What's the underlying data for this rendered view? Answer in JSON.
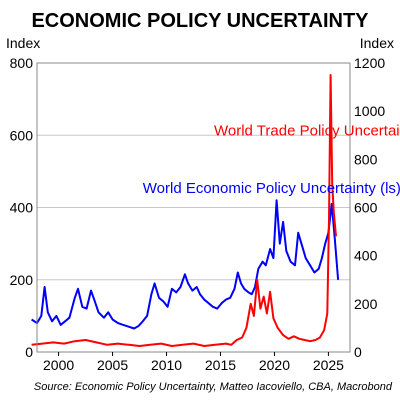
{
  "chart_data": {
    "type": "line",
    "title": "ECONOMIC POLICY UNCERTAINTY",
    "ylabel_left": "Index",
    "ylabel_right": "Index",
    "xlim": [
      1998,
      2027
    ],
    "ylim_left": [
      0,
      800
    ],
    "ylim_right": [
      0,
      1200
    ],
    "x_ticks": [
      2000,
      2005,
      2010,
      2015,
      2020,
      2025
    ],
    "y_ticks_left": [
      0,
      200,
      400,
      600,
      800
    ],
    "y_ticks_right": [
      0,
      200,
      400,
      600,
      800,
      1000,
      1200
    ],
    "grid": true,
    "source": "Source: Economic Policy Uncertainty, Matteo Iacoviello, CBA, Macrobond",
    "series": [
      {
        "name": "World Economic Policy Uncertainty (ls)",
        "axis": "left",
        "color": "#0000ff",
        "points": [
          [
            1997.5,
            90
          ],
          [
            1998.0,
            80
          ],
          [
            1998.4,
            100
          ],
          [
            1998.7,
            180
          ],
          [
            1999.0,
            110
          ],
          [
            1999.4,
            85
          ],
          [
            1999.8,
            100
          ],
          [
            2000.2,
            75
          ],
          [
            2000.6,
            85
          ],
          [
            2001.0,
            95
          ],
          [
            2001.5,
            150
          ],
          [
            2001.8,
            175
          ],
          [
            2002.2,
            125
          ],
          [
            2002.6,
            120
          ],
          [
            2003.0,
            170
          ],
          [
            2003.3,
            145
          ],
          [
            2003.7,
            110
          ],
          [
            2004.2,
            95
          ],
          [
            2004.6,
            110
          ],
          [
            2005.0,
            90
          ],
          [
            2005.5,
            80
          ],
          [
            2006.0,
            75
          ],
          [
            2006.5,
            70
          ],
          [
            2007.0,
            65
          ],
          [
            2007.4,
            72
          ],
          [
            2007.8,
            85
          ],
          [
            2008.2,
            100
          ],
          [
            2008.6,
            160
          ],
          [
            2008.9,
            190
          ],
          [
            2009.3,
            150
          ],
          [
            2009.7,
            140
          ],
          [
            2010.1,
            125
          ],
          [
            2010.5,
            175
          ],
          [
            2010.9,
            165
          ],
          [
            2011.3,
            180
          ],
          [
            2011.7,
            215
          ],
          [
            2012.0,
            190
          ],
          [
            2012.4,
            170
          ],
          [
            2012.8,
            180
          ],
          [
            2013.1,
            160
          ],
          [
            2013.5,
            145
          ],
          [
            2013.9,
            135
          ],
          [
            2014.3,
            125
          ],
          [
            2014.7,
            120
          ],
          [
            2015.1,
            135
          ],
          [
            2015.5,
            145
          ],
          [
            2015.9,
            150
          ],
          [
            2016.3,
            175
          ],
          [
            2016.6,
            220
          ],
          [
            2016.9,
            190
          ],
          [
            2017.2,
            175
          ],
          [
            2017.6,
            165
          ],
          [
            2017.9,
            160
          ],
          [
            2018.2,
            180
          ],
          [
            2018.5,
            230
          ],
          [
            2018.9,
            250
          ],
          [
            2019.2,
            240
          ],
          [
            2019.6,
            285
          ],
          [
            2019.9,
            260
          ],
          [
            2020.2,
            420
          ],
          [
            2020.5,
            300
          ],
          [
            2020.8,
            360
          ],
          [
            2021.1,
            280
          ],
          [
            2021.5,
            250
          ],
          [
            2021.9,
            240
          ],
          [
            2022.2,
            330
          ],
          [
            2022.6,
            290
          ],
          [
            2022.9,
            260
          ],
          [
            2023.3,
            240
          ],
          [
            2023.7,
            220
          ],
          [
            2024.1,
            230
          ],
          [
            2024.4,
            260
          ],
          [
            2024.7,
            300
          ],
          [
            2025.0,
            330
          ],
          [
            2025.3,
            410
          ],
          [
            2025.6,
            310
          ],
          [
            2025.9,
            200
          ]
        ]
      },
      {
        "name": "World Trade Policy Uncertainty (rs)",
        "axis": "right",
        "color": "#ff0000",
        "points": [
          [
            1997.5,
            30
          ],
          [
            1998.5,
            35
          ],
          [
            1999.5,
            40
          ],
          [
            2000.5,
            35
          ],
          [
            2001.5,
            45
          ],
          [
            2002.5,
            50
          ],
          [
            2003.5,
            40
          ],
          [
            2004.5,
            30
          ],
          [
            2005.5,
            35
          ],
          [
            2006.5,
            30
          ],
          [
            2007.5,
            25
          ],
          [
            2008.5,
            30
          ],
          [
            2009.5,
            35
          ],
          [
            2010.5,
            25
          ],
          [
            2011.5,
            30
          ],
          [
            2012.5,
            35
          ],
          [
            2013.5,
            25
          ],
          [
            2014.5,
            30
          ],
          [
            2015.5,
            35
          ],
          [
            2016.0,
            30
          ],
          [
            2016.5,
            50
          ],
          [
            2017.0,
            60
          ],
          [
            2017.4,
            100
          ],
          [
            2017.8,
            200
          ],
          [
            2018.1,
            150
          ],
          [
            2018.4,
            300
          ],
          [
            2018.7,
            180
          ],
          [
            2019.0,
            230
          ],
          [
            2019.3,
            160
          ],
          [
            2019.6,
            250
          ],
          [
            2019.9,
            140
          ],
          [
            2020.3,
            100
          ],
          [
            2020.8,
            70
          ],
          [
            2021.3,
            55
          ],
          [
            2021.8,
            65
          ],
          [
            2022.3,
            55
          ],
          [
            2022.8,
            50
          ],
          [
            2023.3,
            45
          ],
          [
            2023.8,
            50
          ],
          [
            2024.2,
            60
          ],
          [
            2024.6,
            90
          ],
          [
            2024.9,
            160
          ],
          [
            2025.05,
            550
          ],
          [
            2025.2,
            1150
          ],
          [
            2025.35,
            700
          ],
          [
            2025.5,
            580
          ],
          [
            2025.7,
            480
          ]
        ]
      }
    ],
    "annotations": [
      {
        "text": "World Trade Policy Uncertainty (rs)",
        "color": "#ff0000",
        "x": 2014.4,
        "y_left": 600
      },
      {
        "text": "World Economic Policy Uncertainty (ls)",
        "color": "#0000ff",
        "x": 2007.8,
        "y_left": 440
      }
    ]
  }
}
